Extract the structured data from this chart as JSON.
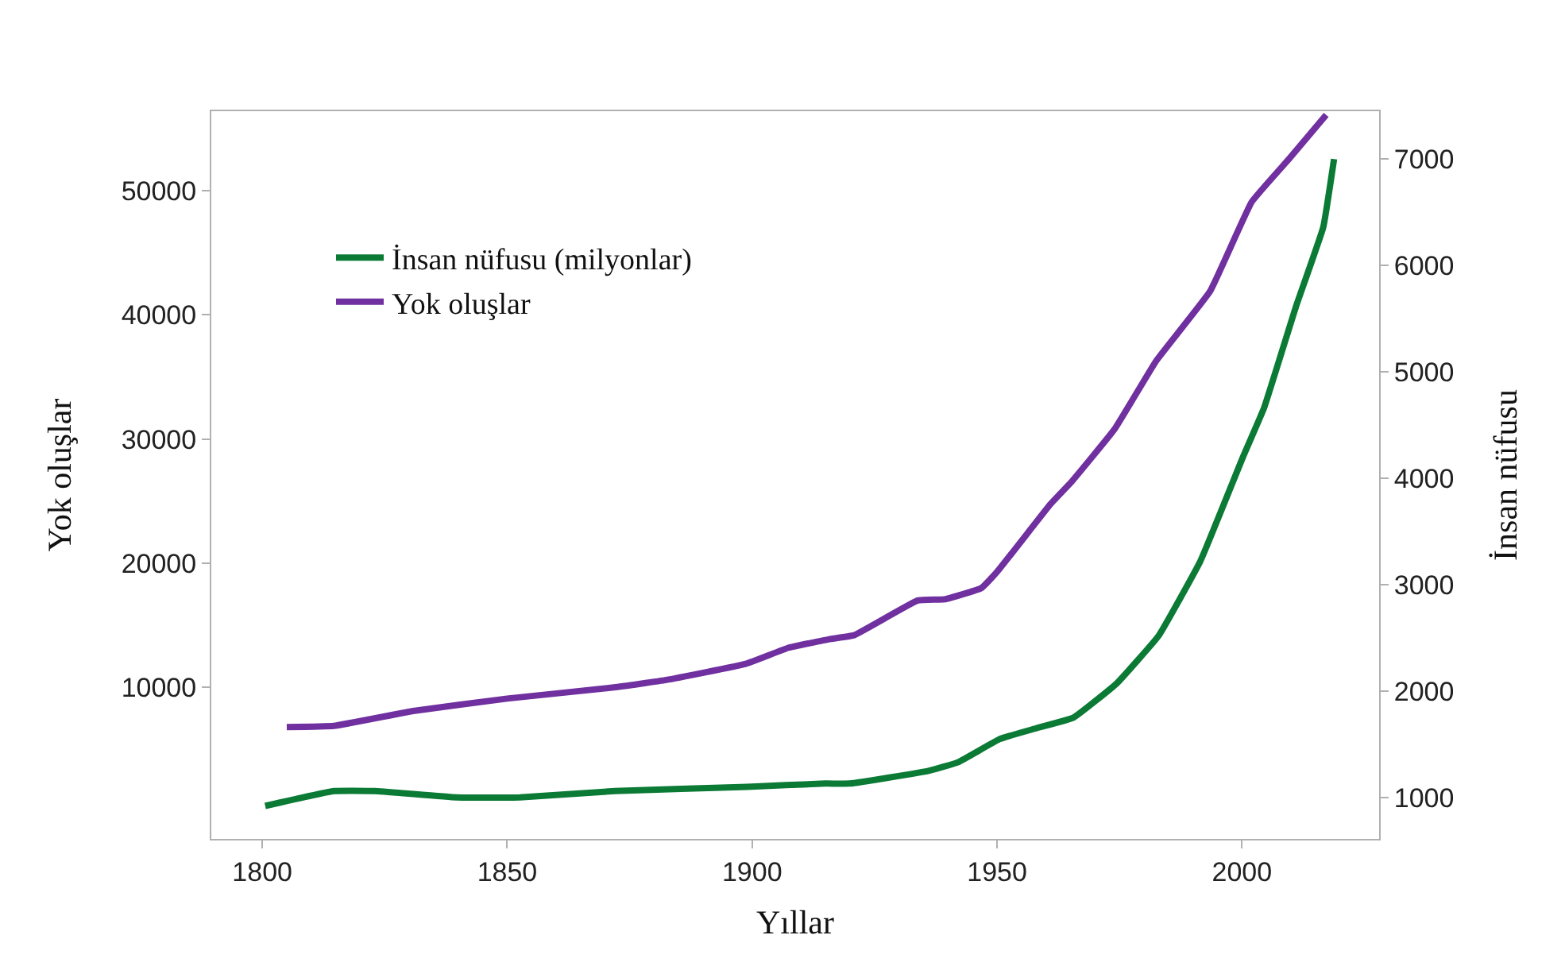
{
  "chart_data": {
    "type": "line",
    "xlabel": "Yıllar",
    "ylabel": "Yok oluşlar",
    "y2label": "İnsan nüfusu",
    "xlim": [
      1789.6,
      2028
    ],
    "xticks": [
      1800,
      1850,
      1900,
      1950,
      2000
    ],
    "ylim": [
      -2200,
      56400
    ],
    "yticks": [
      10000,
      20000,
      30000,
      40000,
      50000
    ],
    "y2lim": [
      610,
      7450
    ],
    "y2ticks": [
      1000,
      2000,
      3000,
      4000,
      5000,
      6000,
      7000
    ],
    "legend": "top left",
    "series": [
      {
        "name": "İnsan nüfusu (milyonlar)",
        "color": "#0a7a35",
        "axis": "y2",
        "x": [
          1800.6,
          1814.6,
          1823,
          1839.6,
          1852.6,
          1872,
          1899,
          1915,
          1920,
          1936,
          1942,
          1950.6,
          1958,
          1965.6,
          1974.4,
          1983,
          1991.5,
          2000.3,
          2004.5,
          2011,
          2016.6,
          2018.8
        ],
        "values": [
          920,
          1060,
          1060,
          1000,
          1000,
          1060,
          1100,
          1130,
          1130,
          1250,
          1330,
          1550,
          1650,
          1750,
          2070,
          2520,
          3220,
          4210,
          4660,
          5610,
          6360,
          7000
        ]
      },
      {
        "name": "Yok oluşlar",
        "color": "#7030a0",
        "x": [
          1805,
          1814.6,
          1830.8,
          1850,
          1871.8,
          1882.5,
          1898.7,
          1907.5,
          1916,
          1920.8,
          1933.8,
          1939.3,
          1946.8,
          1950,
          1961,
          1965.3,
          1974,
          1982.5,
          1993.5,
          2002,
          2009.7,
          2017.2
        ],
        "values": [
          6800,
          6900,
          8100,
          9100,
          10000,
          10600,
          11900,
          13200,
          13900,
          14200,
          17000,
          17100,
          18000,
          19300,
          24800,
          26600,
          30800,
          36300,
          41900,
          49100,
          52600,
          56100
        ]
      }
    ]
  }
}
